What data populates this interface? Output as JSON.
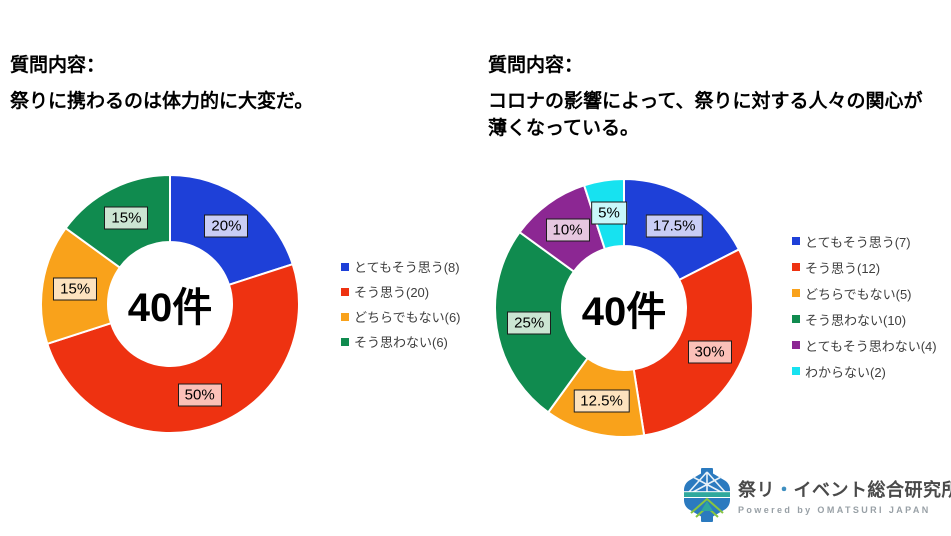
{
  "chart_data": [
    {
      "type": "pie",
      "subtype": "donut",
      "question_label": "質問内容：",
      "question_text": "祭りに携わるのは体力的に大変だ。",
      "center_label": "40件",
      "total": 40,
      "start_angle_deg": 0,
      "direction": "clockwise",
      "legend_position": "right",
      "categories": [
        "とてもそう思う",
        "そう思う",
        "どちらでもない",
        "そう思わない"
      ],
      "counts": [
        8,
        20,
        6,
        6
      ],
      "percents": [
        20,
        50,
        15,
        15
      ],
      "percent_labels": [
        "20%",
        "50%",
        "15%",
        "15%"
      ],
      "colors": [
        "#1e40d8",
        "#ee3211",
        "#f9a21b",
        "#108b4f"
      ],
      "label_bg": [
        "#c9cdf5",
        "#fbc0b8",
        "#fde2be",
        "#cbe5d2"
      ]
    },
    {
      "type": "pie",
      "subtype": "donut",
      "question_label": "質問内容：",
      "question_text": "コロナの影響によって、祭りに対する人々の関心が\n薄くなっている。",
      "center_label": "40件",
      "total": 40,
      "start_angle_deg": 0,
      "direction": "clockwise",
      "legend_position": "right",
      "categories": [
        "とてもそう思う",
        "そう思う",
        "どちらでもない",
        "そう思わない",
        "とてもそう思わない",
        "わからない"
      ],
      "counts": [
        7,
        12,
        5,
        10,
        4,
        2
      ],
      "percents": [
        17.5,
        30,
        12.5,
        25,
        10,
        5
      ],
      "percent_labels": [
        "17.5%",
        "30%",
        "12.5%",
        "25%",
        "10%",
        "5%"
      ],
      "colors": [
        "#1e40d8",
        "#ee3211",
        "#f9a21b",
        "#108b4f",
        "#8c2793",
        "#17e2f0"
      ],
      "label_bg": [
        "#c9cdf5",
        "#fbc0b8",
        "#fde2be",
        "#cbe5d2",
        "#e6c7e0",
        "#c9f7fa"
      ]
    }
  ],
  "logo": {
    "name_pre": "祭リ",
    "dot": "・",
    "name_post": "イベント総合研究所",
    "subtitle": "Powered by OMATSURI JAPAN",
    "accent_color": "#3f8fc0",
    "icon_blue": "#2b7abf",
    "icon_teal": "#2fa89d",
    "icon_green": "#86c440"
  }
}
